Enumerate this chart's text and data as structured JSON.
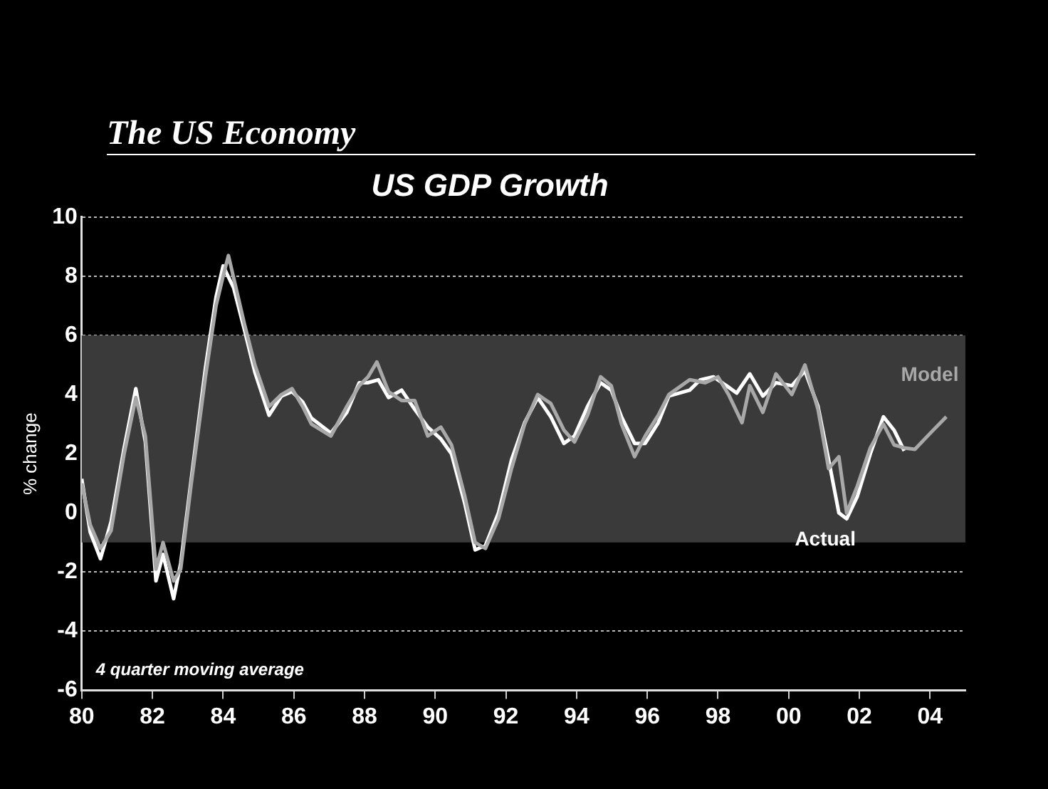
{
  "chart_data": {
    "type": "line",
    "title": "US GDP Growth",
    "subtitle": "The US Economy",
    "ylabel": "% change",
    "annotations": [
      "4 quarter moving average"
    ],
    "xlim": [
      1980,
      2005
    ],
    "xticks": [
      {
        "value": 1980,
        "label": "80"
      },
      {
        "value": 1982,
        "label": "82"
      },
      {
        "value": 1984,
        "label": "84"
      },
      {
        "value": 1986,
        "label": "86"
      },
      {
        "value": 1988,
        "label": "88"
      },
      {
        "value": 1990,
        "label": "90"
      },
      {
        "value": 1992,
        "label": "92"
      },
      {
        "value": 1994,
        "label": "94"
      },
      {
        "value": 1996,
        "label": "96"
      },
      {
        "value": 1998,
        "label": "98"
      },
      {
        "value": 2000,
        "label": "00"
      },
      {
        "value": 2002,
        "label": "02"
      },
      {
        "value": 2004,
        "label": "04"
      }
    ],
    "ylim": [
      -6,
      10
    ],
    "yticks": [
      -6,
      -4,
      -2,
      0,
      2,
      4,
      6,
      8,
      10
    ],
    "grid": "y",
    "legend": false,
    "marker": "none",
    "line_style": "solid",
    "bands": [
      {
        "axis": "y",
        "from": -1,
        "to": 6,
        "color": "#3a3a3a"
      }
    ],
    "series": [
      {
        "name": "Model",
        "color": "#a8a8a8",
        "x": [
          1980.0,
          1980.24,
          1980.53,
          1980.83,
          1981.2,
          1981.53,
          1981.8,
          1982.1,
          1982.3,
          1982.6,
          1982.8,
          1983.1,
          1983.5,
          1983.8,
          1984.0,
          1984.15,
          1984.6,
          1984.9,
          1985.3,
          1985.65,
          1985.95,
          1986.25,
          1986.5,
          1987.05,
          1987.5,
          1987.85,
          1988.1,
          1988.35,
          1988.68,
          1989.05,
          1989.42,
          1989.79,
          1990.16,
          1990.46,
          1990.83,
          1991.13,
          1991.42,
          1991.79,
          1992.16,
          1992.53,
          1992.9,
          1993.27,
          1993.64,
          1993.94,
          1994.31,
          1994.68,
          1994.98,
          1995.27,
          1995.64,
          1995.94,
          1996.31,
          1996.61,
          1997.2,
          1997.64,
          1998.0,
          1998.3,
          1998.68,
          1998.9,
          1999.27,
          1999.64,
          2000.09,
          2000.46,
          2000.83,
          2001.13,
          2001.42,
          2001.64,
          2001.94,
          2002.31,
          2002.68,
          2002.98,
          2003.27,
          2003.57,
          2004.01,
          2004.46
        ],
        "values": [
          1.0,
          -0.4,
          -1.2,
          -0.6,
          2.0,
          3.9,
          2.6,
          -1.9,
          -1.0,
          -2.3,
          -1.9,
          1.0,
          4.6,
          7.0,
          8.0,
          8.7,
          6.4,
          5.0,
          3.6,
          4.0,
          4.2,
          3.6,
          3.0,
          2.6,
          3.6,
          4.3,
          4.6,
          5.1,
          4.1,
          3.8,
          3.8,
          2.6,
          2.9,
          2.3,
          0.6,
          -1.0,
          -1.2,
          -0.2,
          1.5,
          3.0,
          4.0,
          3.7,
          2.8,
          2.4,
          3.3,
          4.6,
          4.3,
          3.0,
          1.9,
          2.6,
          3.3,
          4.0,
          4.5,
          4.4,
          4.6,
          4.0,
          3.05,
          4.3,
          3.4,
          4.7,
          4.0,
          5.0,
          3.5,
          1.5,
          1.9,
          0.0,
          0.9,
          2.2,
          3.0,
          2.3,
          2.2,
          2.15,
          2.7,
          3.25
        ]
      },
      {
        "name": "Actual",
        "color": "#ffffff",
        "x": [
          1980.0,
          1980.24,
          1980.53,
          1980.83,
          1981.2,
          1981.53,
          1981.8,
          1982.1,
          1982.3,
          1982.6,
          1982.8,
          1983.1,
          1983.5,
          1983.8,
          1984.0,
          1984.3,
          1984.6,
          1984.9,
          1985.3,
          1985.65,
          1985.95,
          1986.25,
          1986.5,
          1987.05,
          1987.5,
          1987.85,
          1988.09,
          1988.39,
          1988.68,
          1989.05,
          1989.42,
          1989.79,
          1990.16,
          1990.46,
          1990.83,
          1991.13,
          1991.42,
          1991.79,
          1992.16,
          1992.53,
          1992.9,
          1993.27,
          1993.64,
          1993.94,
          1994.31,
          1994.68,
          1994.98,
          1995.27,
          1995.64,
          1995.94,
          1996.31,
          1996.61,
          1997.2,
          1997.5,
          1997.87,
          1998.24,
          1998.53,
          1998.9,
          1999.27,
          1999.64,
          2000.09,
          2000.46,
          2000.83,
          2001.13,
          2001.42,
          2001.64,
          2001.94,
          2002.31,
          2002.68,
          2002.98,
          2003.27
        ],
        "values": [
          1.15,
          -0.65,
          -1.55,
          -0.3,
          2.2,
          4.2,
          2.4,
          -2.3,
          -1.4,
          -2.9,
          -1.7,
          1.15,
          4.9,
          7.3,
          8.35,
          7.6,
          6.2,
          4.75,
          3.3,
          3.95,
          4.1,
          3.75,
          3.2,
          2.7,
          3.4,
          4.4,
          4.4,
          4.5,
          3.9,
          4.15,
          3.5,
          2.9,
          2.5,
          2.0,
          0.35,
          -1.25,
          -1.1,
          0.0,
          1.8,
          3.05,
          3.9,
          3.25,
          2.35,
          2.6,
          3.6,
          4.4,
          4.15,
          3.25,
          2.35,
          2.35,
          3.05,
          3.95,
          4.15,
          4.5,
          4.6,
          4.3,
          4.05,
          4.7,
          3.95,
          4.4,
          4.3,
          4.8,
          3.6,
          1.8,
          0.0,
          -0.2,
          0.55,
          2.0,
          3.25,
          2.8,
          2.1
        ]
      }
    ]
  }
}
